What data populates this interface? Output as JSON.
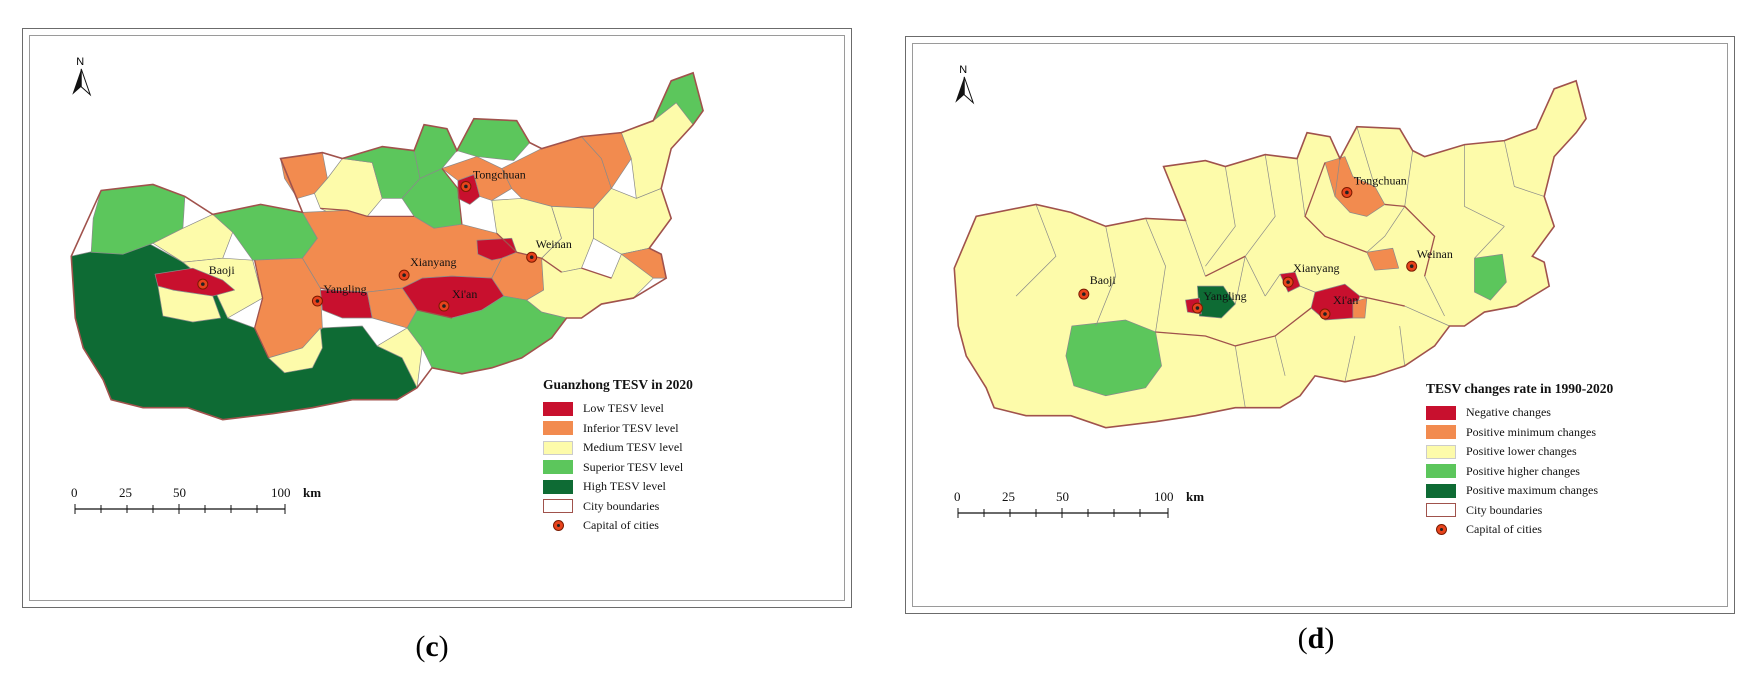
{
  "panels": [
    {
      "id": "c",
      "caption_letter": "c",
      "north": "N",
      "legend": {
        "title": "Guanzhong TESV in 2020",
        "items": [
          {
            "label": "Low TESV level",
            "color": "#c8102e"
          },
          {
            "label": "Inferior TESV level",
            "color": "#f28b4f"
          },
          {
            "label": "Medium TESV level",
            "color": "#fdfbaa"
          },
          {
            "label": "Superior TESV level",
            "color": "#5cc65c"
          },
          {
            "label": "High TESV level",
            "color": "#0e6b34"
          },
          {
            "label": "City boundaries",
            "color": "#a0524c"
          },
          {
            "label": "Capital of cities",
            "color": "#e8431c"
          }
        ]
      },
      "scale": {
        "ticks": [
          "0",
          "25",
          "50",
          "100"
        ],
        "unit": "km"
      },
      "cities": [
        "Tongchuan",
        "Baoji",
        "Weinan",
        "Xianyang",
        "Yangling",
        "Xi'an"
      ]
    },
    {
      "id": "d",
      "caption_letter": "d",
      "north": "N",
      "legend": {
        "title": "TESV changes rate in 1990-2020",
        "items": [
          {
            "label": "Negative changes",
            "color": "#c8102e"
          },
          {
            "label": "Positive minimum changes",
            "color": "#f28b4f"
          },
          {
            "label": "Positive lower changes",
            "color": "#fdfbaa"
          },
          {
            "label": "Positive higher changes",
            "color": "#5cc65c"
          },
          {
            "label": "Positive maximum changes",
            "color": "#0e6b34"
          },
          {
            "label": "City boundaries",
            "color": "#a0524c"
          },
          {
            "label": "Capital of cities",
            "color": "#e8431c"
          }
        ]
      },
      "scale": {
        "ticks": [
          "0",
          "25",
          "50",
          "100"
        ],
        "unit": "km"
      },
      "cities": [
        "Tongchuan",
        "Weinan",
        "Baoji",
        "Xianyang",
        "Yangling",
        "Xi'an"
      ]
    }
  ]
}
